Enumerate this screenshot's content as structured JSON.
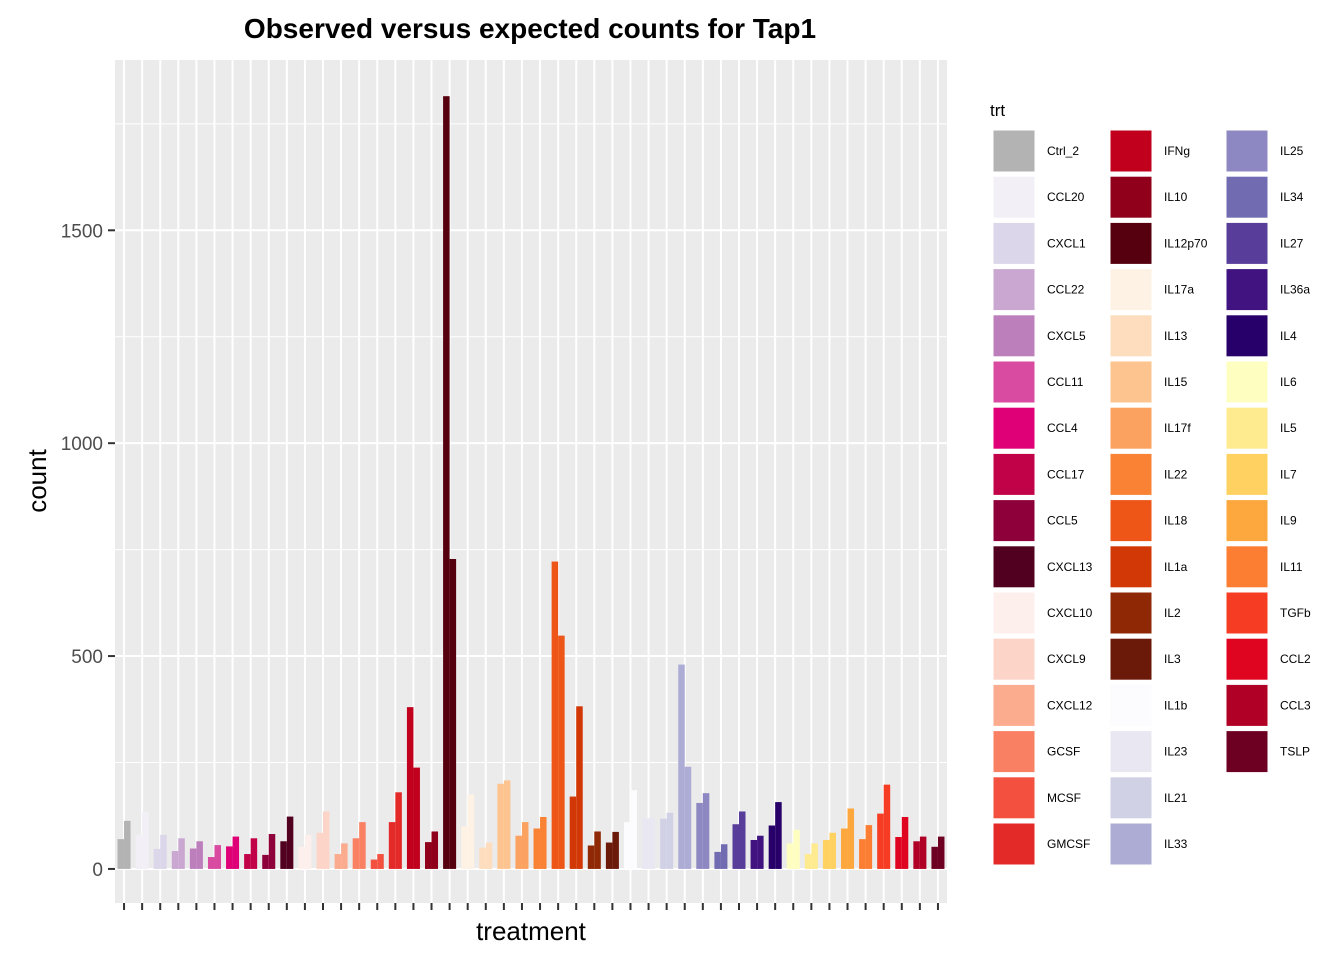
{
  "chart_data": {
    "type": "bar",
    "title": "Observed versus expected counts for Tap1",
    "xlabel": "treatment",
    "ylabel": "count",
    "ylim": [
      -80,
      1900
    ],
    "y_ticks": [
      0,
      500,
      1000,
      1500
    ],
    "grid": true,
    "legend_title": "trt",
    "legend_position": "right",
    "bar_pair_note": "each treatment shows two bars",
    "treatments": [
      {
        "name": "Ctrl_2",
        "color": "#b3b3b3",
        "values": [
          70,
          113
        ]
      },
      {
        "name": "CCL20",
        "color": "#f2eff6",
        "values": [
          80,
          134
        ]
      },
      {
        "name": "CXCL1",
        "color": "#dcd6ea",
        "values": [
          47,
          80
        ]
      },
      {
        "name": "CCL22",
        "color": "#c9a7d1",
        "values": [
          42,
          72
        ]
      },
      {
        "name": "CXCL5",
        "color": "#bd7fbb",
        "values": [
          48,
          65
        ]
      },
      {
        "name": "CCL11",
        "color": "#d84ba0",
        "values": [
          28,
          56
        ]
      },
      {
        "name": "CCL4",
        "color": "#df0077",
        "values": [
          53,
          76
        ]
      },
      {
        "name": "CCL17",
        "color": "#c10248",
        "values": [
          35,
          72
        ]
      },
      {
        "name": "CCL5",
        "color": "#8e0039",
        "values": [
          33,
          82
        ]
      },
      {
        "name": "CXCL13",
        "color": "#52001f",
        "values": [
          65,
          123
        ]
      },
      {
        "name": "CXCL10",
        "color": "#fdefec",
        "values": [
          52,
          80
        ]
      },
      {
        "name": "CXCL9",
        "color": "#fdd5c8",
        "values": [
          85,
          135
        ]
      },
      {
        "name": "CXCL12",
        "color": "#fbab8e",
        "values": [
          35,
          60
        ]
      },
      {
        "name": "GCSF",
        "color": "#f98063",
        "values": [
          72,
          110
        ]
      },
      {
        "name": "MCSF",
        "color": "#f35040",
        "values": [
          22,
          35
        ]
      },
      {
        "name": "GMCSF",
        "color": "#e32a29",
        "values": [
          110,
          180
        ]
      },
      {
        "name": "IFNg",
        "color": "#c1001d",
        "values": [
          380,
          238
        ]
      },
      {
        "name": "IL10",
        "color": "#90001a",
        "values": [
          63,
          88
        ]
      },
      {
        "name": "IL12p70",
        "color": "#56000f",
        "values": [
          1815,
          728
        ]
      },
      {
        "name": "IL17a",
        "color": "#fef2e5",
        "values": [
          100,
          175
        ]
      },
      {
        "name": "IL13",
        "color": "#fdddbd",
        "values": [
          50,
          62
        ]
      },
      {
        "name": "IL15",
        "color": "#fdc48f",
        "values": [
          200,
          208
        ]
      },
      {
        "name": "IL17f",
        "color": "#fba261",
        "values": [
          78,
          110
        ]
      },
      {
        "name": "IL22",
        "color": "#f98234",
        "values": [
          95,
          122
        ]
      },
      {
        "name": "IL18",
        "color": "#ed5617",
        "values": [
          722,
          548
        ]
      },
      {
        "name": "IL1a",
        "color": "#d23805",
        "values": [
          170,
          382
        ]
      },
      {
        "name": "IL2",
        "color": "#8e2805",
        "values": [
          55,
          88
        ]
      },
      {
        "name": "IL3",
        "color": "#6b1a0a",
        "values": [
          62,
          87
        ]
      },
      {
        "name": "IL1b",
        "color": "#fcfbfd",
        "values": [
          110,
          185
        ]
      },
      {
        "name": "IL23",
        "color": "#e9e7f2",
        "values": [
          118,
          120
        ]
      },
      {
        "name": "IL21",
        "color": "#d1d1e6",
        "values": [
          118,
          132
        ]
      },
      {
        "name": "IL33",
        "color": "#adacd5",
        "values": [
          480,
          240
        ]
      },
      {
        "name": "IL25",
        "color": "#8d88c1",
        "values": [
          155,
          178
        ]
      },
      {
        "name": "IL34",
        "color": "#716bb1",
        "values": [
          40,
          58
        ]
      },
      {
        "name": "IL27",
        "color": "#583e9a",
        "values": [
          105,
          135
        ]
      },
      {
        "name": "IL36a",
        "color": "#401380",
        "values": [
          68,
          78
        ]
      },
      {
        "name": "IL4",
        "color": "#280069",
        "values": [
          102,
          157
        ]
      },
      {
        "name": "IL6",
        "color": "#fefec0",
        "values": [
          60,
          92
        ]
      },
      {
        "name": "IL5",
        "color": "#feea8f",
        "values": [
          35,
          60
        ]
      },
      {
        "name": "IL7",
        "color": "#fed161",
        "values": [
          68,
          85
        ]
      },
      {
        "name": "IL9",
        "color": "#fda83e",
        "values": [
          95,
          142
        ]
      },
      {
        "name": "IL11",
        "color": "#fc7e33",
        "values": [
          70,
          103
        ]
      },
      {
        "name": "TGFb",
        "color": "#f63d24",
        "values": [
          130,
          198
        ]
      },
      {
        "name": "CCL2",
        "color": "#df0520",
        "values": [
          75,
          122
        ]
      },
      {
        "name": "CCL3",
        "color": "#b10026",
        "values": [
          65,
          76
        ]
      },
      {
        "name": "TSLP",
        "color": "#6d0022",
        "values": [
          52,
          76
        ]
      }
    ]
  }
}
